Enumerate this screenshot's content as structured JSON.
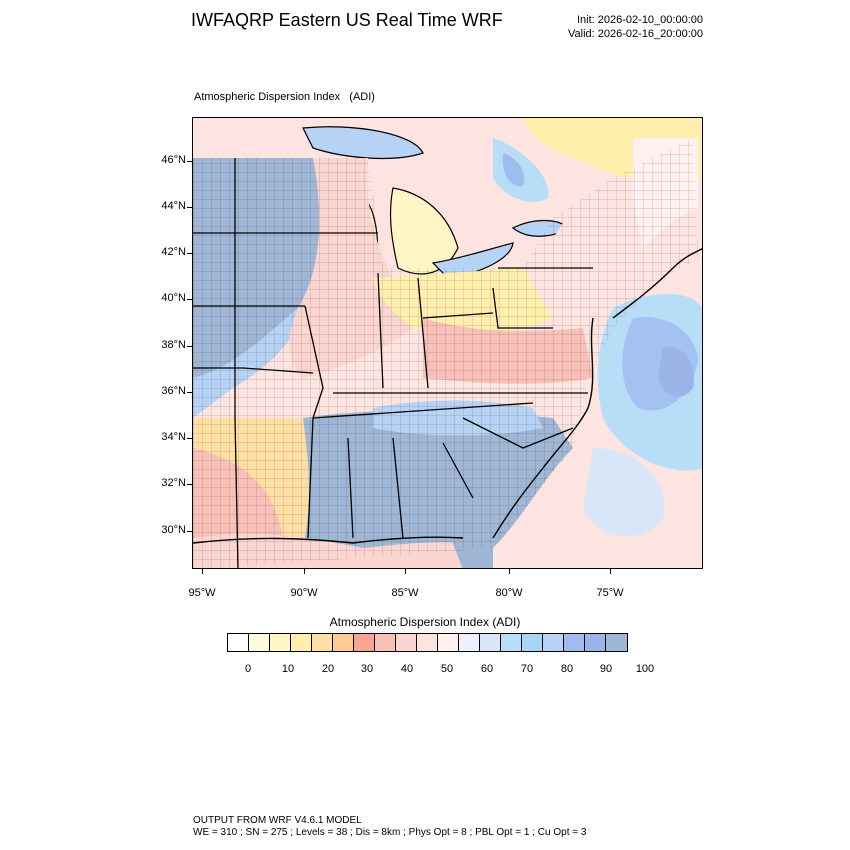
{
  "header": {
    "title": "IWFAQRP Eastern US Real Time WRF",
    "init": "Init: 2026-02-10_00:00:00",
    "valid": "Valid: 2026-02-16_20:00:00"
  },
  "map": {
    "field_label": "Atmospheric Dispersion Index   (ADI)",
    "lat_labels": [
      "46°N",
      "44°N",
      "42°N",
      "40°N",
      "38°N",
      "36°N",
      "34°N",
      "32°N",
      "30°N"
    ],
    "lon_labels": [
      "95°W",
      "90°W",
      "85°W",
      "80°W",
      "75°W"
    ]
  },
  "colorbar": {
    "title": "Atmospheric Dispersion Index  (ADI)",
    "colors": [
      "#ffffff",
      "#fffbe0",
      "#fff5c5",
      "#ffeeac",
      "#ffdfa4",
      "#ffcc96",
      "#f9a691",
      "#f9c0b8",
      "#fbd5d0",
      "#fde4e0",
      "#fff1ef",
      "#eef0fb",
      "#d7e7f8",
      "#b7ddf7",
      "#a5d6f3",
      "#b6d2f4",
      "#9fbcef",
      "#9ab4e8",
      "#9fb6d4"
    ],
    "tick_labels": [
      "0",
      "10",
      "20",
      "30",
      "40",
      "50",
      "60",
      "70",
      "80",
      "90",
      "100"
    ]
  },
  "footer": {
    "line1": "OUTPUT FROM WRF V4.6.1 MODEL",
    "line2": "WE = 310 ; SN = 275 ; Levels = 38 ; Dis = 8km ; Phys Opt = 8 ; PBL Opt = 1 ; Cu Opt = 3"
  }
}
